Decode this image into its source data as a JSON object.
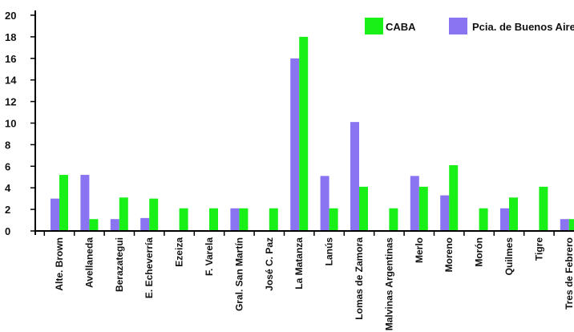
{
  "chart_data": {
    "type": "bar",
    "title": "",
    "xlabel": "",
    "ylabel": "",
    "ylim": [
      0,
      20
    ],
    "yticks": [
      0,
      2,
      4,
      6,
      8,
      10,
      12,
      14,
      16,
      18,
      20
    ],
    "grid": false,
    "legend_position": "top-right",
    "categories": [
      "Alte. Brown",
      "Avellaneda",
      "Berazategui",
      "E. Echeverría",
      "Ezeiza",
      "F. Varela",
      "Gral. San Martín",
      "José C. Paz",
      "La Matanza",
      "Lanús",
      "Lomas de Zamora",
      "Malvinas Argentinas",
      "Merlo",
      "Moreno",
      "Morón",
      "Quilmes",
      "Tigre",
      "Tres de Febrero"
    ],
    "series": [
      {
        "name": "Pcia. de Buenos Aires",
        "color": "#8a74f2",
        "values": [
          3,
          5.2,
          1.1,
          1.2,
          0,
          0,
          2.1,
          0,
          16,
          5.1,
          10.1,
          0,
          5.1,
          3.3,
          0,
          2.1,
          0,
          1.1
        ]
      },
      {
        "name": "CABA",
        "color": "#18f018",
        "values": [
          5.2,
          1.1,
          3.1,
          3,
          2.1,
          2.1,
          2.1,
          2.1,
          18,
          2.1,
          4.1,
          2.1,
          4.1,
          6.1,
          2.1,
          3.1,
          4.1,
          1.1
        ]
      }
    ]
  }
}
